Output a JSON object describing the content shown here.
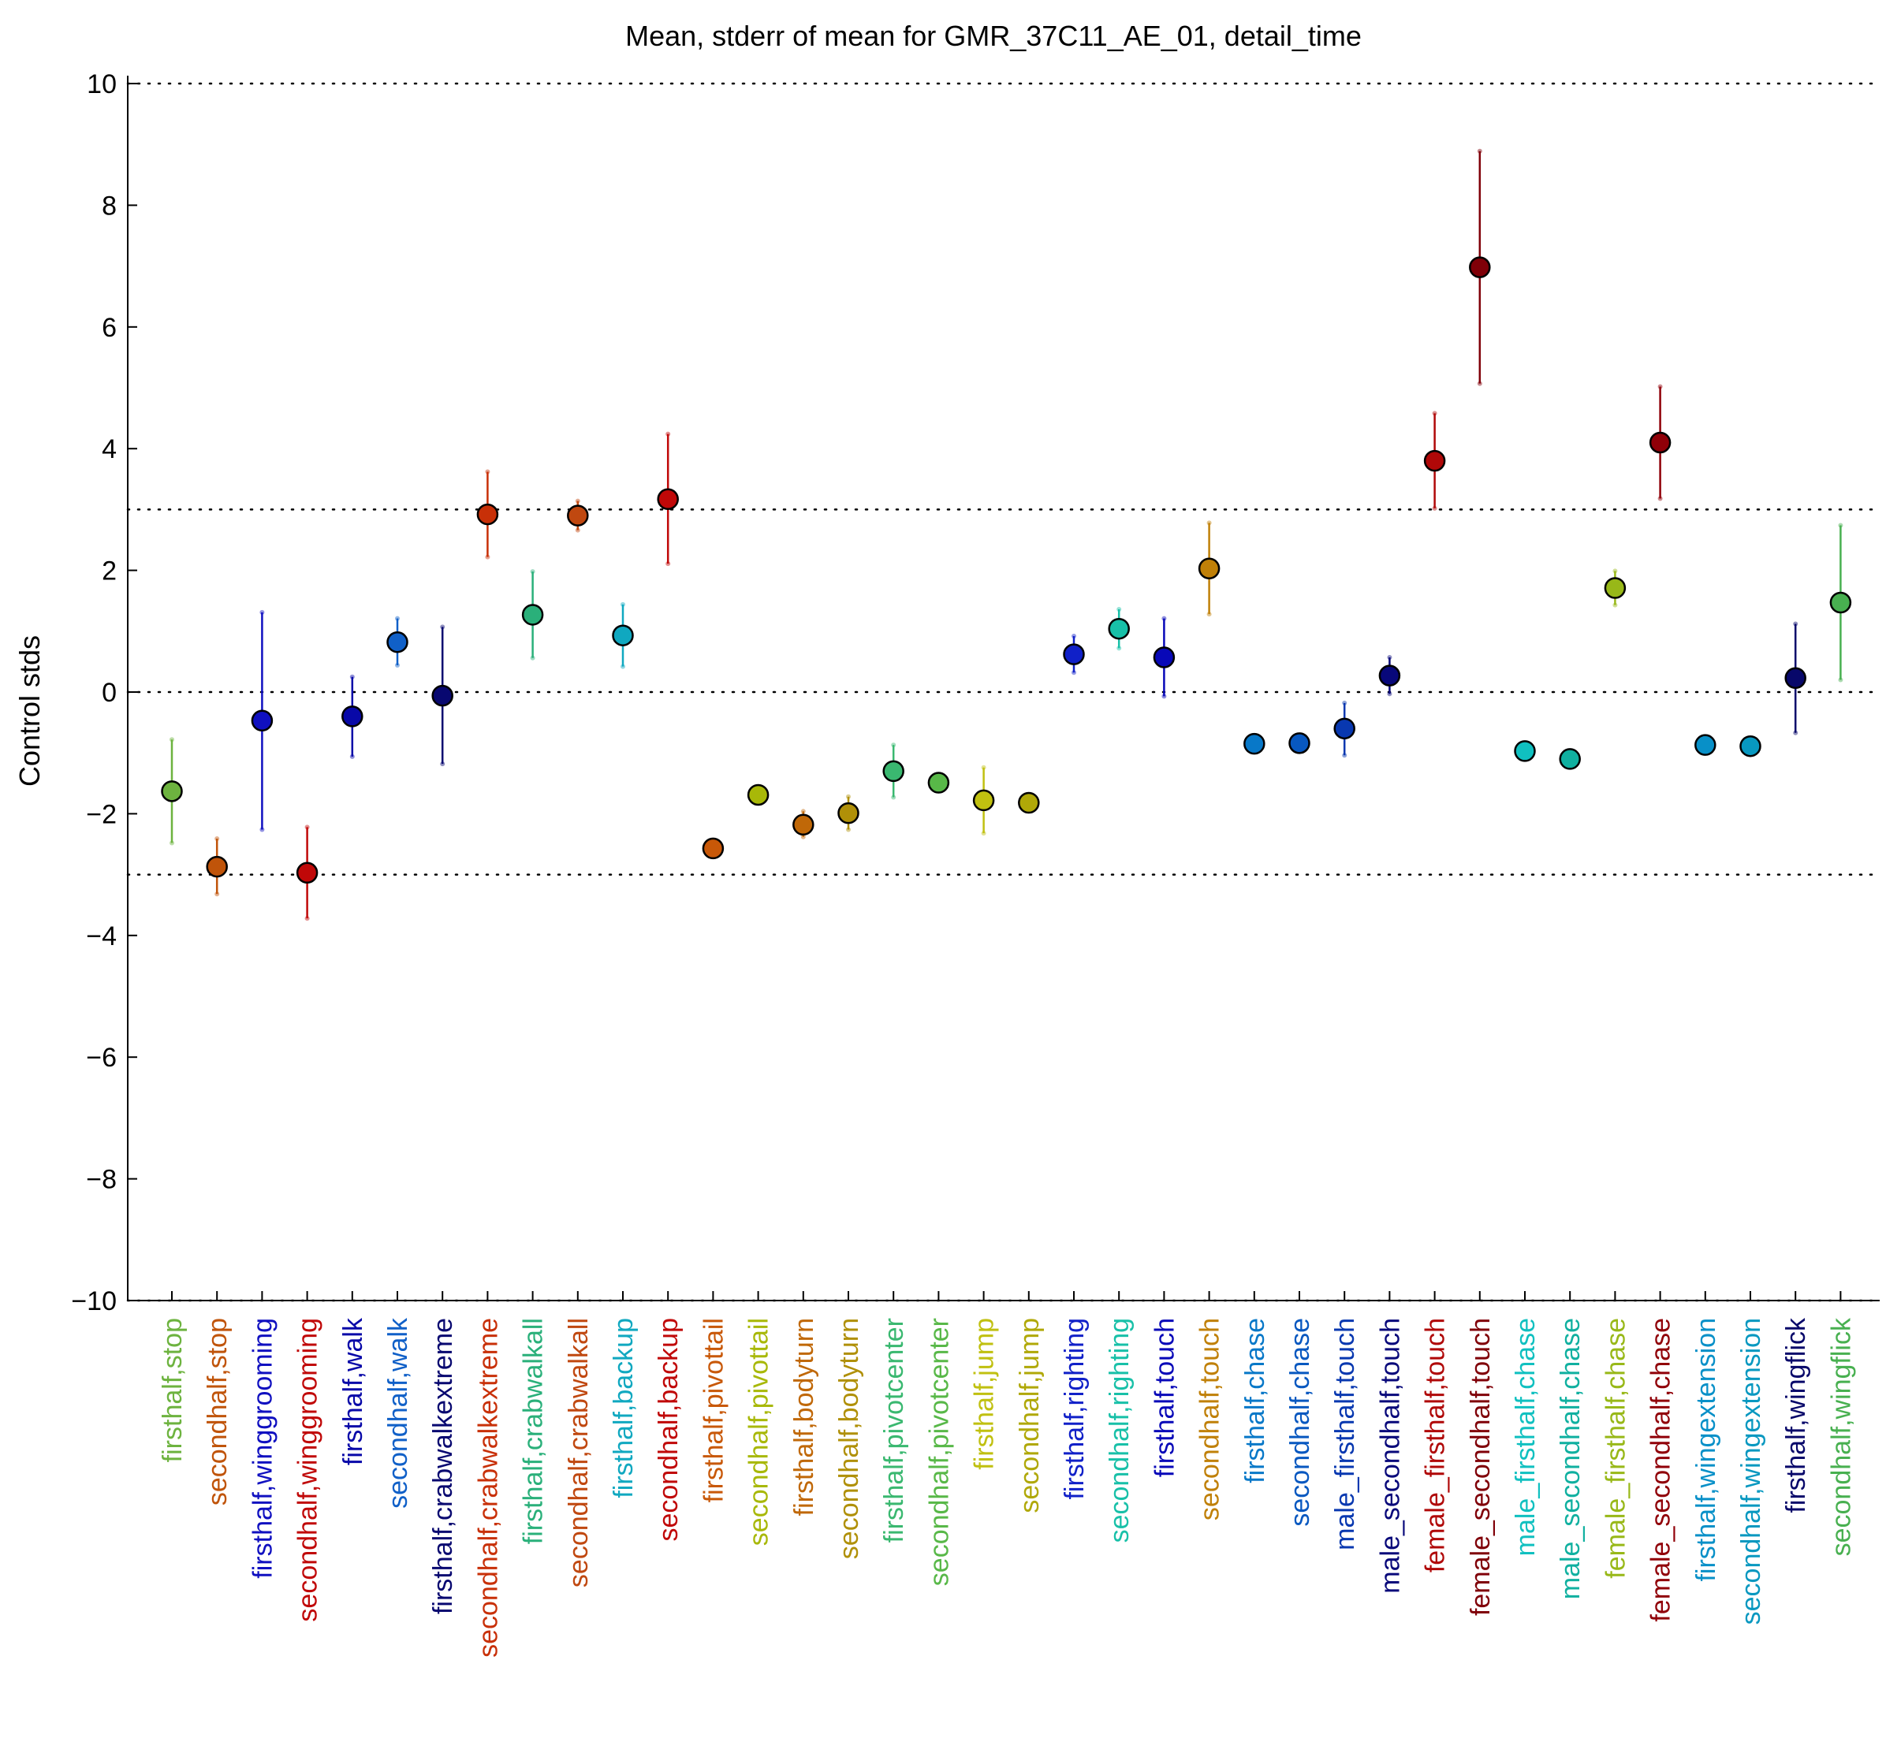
{
  "chart_data": {
    "type": "scatter",
    "title": "Mean, stderr of mean for GMR_37C11_AE_01, detail_time",
    "xlabel": "",
    "ylabel": "Control stds",
    "ylim": [
      -10,
      10
    ],
    "yticks": [
      -10,
      -8,
      -6,
      -4,
      -2,
      0,
      2,
      4,
      6,
      8,
      10
    ],
    "yticklabels": [
      "−10",
      "−8",
      "−6",
      "−4",
      "−2",
      "0",
      "2",
      "4",
      "6",
      "8",
      "10"
    ],
    "reference_lines": [
      10,
      3,
      0,
      -3,
      -10
    ],
    "grid": false,
    "categories": [
      "firsthalf,stop",
      "secondhalf,stop",
      "firsthalf,winggrooming",
      "secondhalf,winggrooming",
      "firsthalf,walk",
      "secondhalf,walk",
      "firsthalf,crabwalkextreme",
      "secondhalf,crabwalkextreme",
      "firsthalf,crabwalkall",
      "secondhalf,crabwalkall",
      "firsthalf,backup",
      "secondhalf,backup",
      "firsthalf,pivottail",
      "secondhalf,pivottail",
      "firsthalf,bodyturn",
      "secondhalf,bodyturn",
      "firsthalf,pivotcenter",
      "secondhalf,pivotcenter",
      "firsthalf,jump",
      "secondhalf,jump",
      "firsthalf,righting",
      "secondhalf,righting",
      "firsthalf,touch",
      "secondhalf,touch",
      "firsthalf,chase",
      "secondhalf,chase",
      "male_firsthalf,touch",
      "male_secondhalf,touch",
      "female_firsthalf,touch",
      "female_secondhalf,touch",
      "male_firsthalf,chase",
      "male_secondhalf,chase",
      "female_firsthalf,chase",
      "female_secondhalf,chase",
      "firsthalf,wingextension",
      "secondhalf,wingextension",
      "firsthalf,wingflick",
      "secondhalf,wingflick"
    ],
    "means": [
      -1.63,
      -2.87,
      -0.47,
      -2.97,
      -0.4,
      0.82,
      -0.06,
      2.92,
      1.27,
      2.9,
      0.93,
      3.17,
      -2.57,
      -1.69,
      -2.18,
      -1.99,
      -1.3,
      -1.49,
      -1.78,
      -1.82,
      0.62,
      1.04,
      0.57,
      2.03,
      -0.85,
      -0.84,
      -0.6,
      0.27,
      3.8,
      6.98,
      -0.97,
      -1.1,
      1.71,
      4.1,
      -0.87,
      -0.89,
      0.23,
      1.47
    ],
    "stderr_low": [
      -2.48,
      -3.32,
      -2.26,
      -3.72,
      -1.06,
      0.44,
      -1.18,
      2.22,
      0.56,
      2.66,
      0.42,
      2.11,
      null,
      null,
      -2.38,
      -2.26,
      -1.73,
      null,
      -2.32,
      null,
      0.32,
      0.72,
      -0.07,
      1.28,
      null,
      null,
      -1.04,
      -0.03,
      3.02,
      5.07,
      null,
      null,
      1.43,
      3.18,
      null,
      null,
      -0.67,
      0.2
    ],
    "stderr_high": [
      -0.78,
      -2.41,
      1.31,
      -2.22,
      0.25,
      1.21,
      1.07,
      3.62,
      1.98,
      3.14,
      1.44,
      4.24,
      null,
      null,
      -1.96,
      -1.72,
      -0.87,
      null,
      -1.24,
      null,
      0.92,
      1.36,
      1.21,
      2.78,
      null,
      null,
      -0.18,
      0.57,
      4.58,
      8.89,
      null,
      null,
      1.99,
      5.02,
      null,
      null,
      1.12,
      2.74
    ],
    "colors": [
      "#6db33f",
      "#c0540a",
      "#1010c0",
      "#c00808",
      "#0808a8",
      "#1060c8",
      "#080870",
      "#c83008",
      "#2ab07a",
      "#c04810",
      "#10a8c0",
      "#c00808",
      "#c85808",
      "#a8b808",
      "#c06808",
      "#b09008",
      "#3ab870",
      "#58b848",
      "#c0c010",
      "#b0a808",
      "#1020c8",
      "#18c0a8",
      "#0808b8",
      "#c08008",
      "#0878c8",
      "#0858c0",
      "#0838b0",
      "#08087a",
      "#b00808",
      "#800008",
      "#10c0c0",
      "#10b0a0",
      "#98b818",
      "#900008",
      "#0890c8",
      "#0898c0",
      "#08086a",
      "#48b050"
    ]
  }
}
